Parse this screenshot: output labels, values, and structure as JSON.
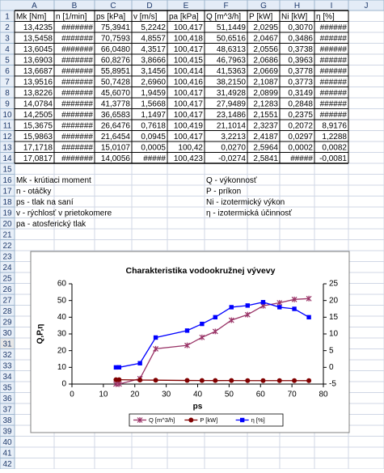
{
  "spreadsheet": {
    "columns": [
      "A",
      "B",
      "C",
      "D",
      "E",
      "F",
      "G",
      "H",
      "I",
      "J"
    ],
    "rows": [
      1,
      2,
      3,
      4,
      5,
      6,
      7,
      8,
      9,
      10,
      11,
      12,
      13,
      14,
      15,
      16,
      17,
      18,
      19,
      20,
      21,
      22,
      23,
      24,
      25,
      26,
      27,
      28,
      29,
      30,
      31,
      32,
      33,
      34,
      35,
      36,
      37,
      38,
      39,
      40,
      41,
      42
    ]
  },
  "table": {
    "header": [
      "Mk [Nm]",
      "n [1/min]",
      "ps [kPa]",
      "v [m/s]",
      "pa [kPa]",
      "Q [m^3/h]",
      "P [kW]",
      "Ni [kW]",
      "η [%]"
    ],
    "rows": [
      [
        "13,4235",
        "#######",
        "75,3941",
        "5,2242",
        "100,417",
        "51,1449",
        "2,0295",
        "0,3070",
        "######"
      ],
      [
        "13,5458",
        "#######",
        "70,7593",
        "4,8557",
        "100,418",
        "50,6516",
        "2,0467",
        "0,3486",
        "######"
      ],
      [
        "13,6045",
        "#######",
        "66,0480",
        "4,3517",
        "100,417",
        "48,6313",
        "2,0556",
        "0,3738",
        "######"
      ],
      [
        "13,6903",
        "#######",
        "60,8276",
        "3,8666",
        "100,415",
        "46,7963",
        "2,0686",
        "0,3963",
        "######"
      ],
      [
        "13,6687",
        "#######",
        "55,8951",
        "3,1456",
        "100,414",
        "41,5363",
        "2,0669",
        "0,3778",
        "######"
      ],
      [
        "13,9516",
        "#######",
        "50,7428",
        "2,6960",
        "100,416",
        "38,2150",
        "2,1087",
        "0,3773",
        "######"
      ],
      [
        "13,8226",
        "#######",
        "45,6070",
        "1,9459",
        "100,417",
        "31,4928",
        "2,0899",
        "0,3149",
        "######"
      ],
      [
        "14,0784",
        "#######",
        "41,3778",
        "1,5668",
        "100,417",
        "27,9489",
        "2,1283",
        "0,2848",
        "######"
      ],
      [
        "14,2505",
        "#######",
        "36,6583",
        "1,1497",
        "100,417",
        "23,1486",
        "2,1551",
        "0,2375",
        "######"
      ],
      [
        "15,3675",
        "#######",
        "26,6476",
        "0,7618",
        "100,419",
        "21,1014",
        "2,3237",
        "0,2072",
        "8,9176"
      ],
      [
        "15,9863",
        "#######",
        "21,6454",
        "0,0945",
        "100,417",
        "3,2213",
        "2,4187",
        "0,0297",
        "1,2288"
      ],
      [
        "17,1718",
        "#######",
        "15,0107",
        "0,0005",
        "100,42",
        "0,0270",
        "2,5964",
        "0,0002",
        "0,0082"
      ],
      [
        "17,0817",
        "#######",
        "14,0056",
        "#####",
        "100,423",
        "-0,0274",
        "2,5841",
        "#####",
        "-0,0081"
      ]
    ]
  },
  "notes": [
    [
      "Mk - krútiaci moment",
      "Q - výkonnosť"
    ],
    [
      "n - otáčky",
      "P - príkon"
    ],
    [
      "ps - tlak na saní",
      "Ni - izotermický výkon"
    ],
    [
      "v - rýchlosť v prietokomere",
      "η - izotermická účinnosť"
    ],
    [
      "pa - atosferický tlak"
    ]
  ],
  "chart_data": {
    "type": "line",
    "title": "Charakteristika vodookružnej vývevy",
    "x_label": "ps",
    "y_label": "Q,P,η",
    "x": [
      75.3941,
      70.7593,
      66.048,
      60.8276,
      55.8951,
      50.7428,
      45.607,
      41.3778,
      36.6583,
      26.6476,
      21.6454,
      15.0107,
      14.0056
    ],
    "xlim": [
      0,
      80
    ],
    "xticks": [
      0,
      10,
      20,
      30,
      40,
      50,
      60,
      70,
      80
    ],
    "ylim": [
      0,
      60
    ],
    "yticks": [
      0,
      10,
      20,
      30,
      40,
      50,
      60
    ],
    "y2lim": [
      -5,
      25
    ],
    "y2ticks": [
      -5,
      0,
      5,
      10,
      15,
      20,
      25
    ],
    "legend": "bottom",
    "series": [
      {
        "name": "Q [m^3/h]",
        "color": "#993366",
        "values": [
          51.1449,
          50.6516,
          48.6313,
          46.7963,
          41.5363,
          38.215,
          31.4928,
          27.9489,
          23.1486,
          21.1014,
          3.2213,
          0.027,
          -0.0274
        ]
      },
      {
        "name": "P [kW]",
        "color": "#800000",
        "values": [
          2.0295,
          2.0467,
          2.0556,
          2.0686,
          2.0669,
          2.1087,
          2.0899,
          2.1283,
          2.1551,
          2.3237,
          2.4187,
          2.5964,
          2.5841
        ]
      },
      {
        "name": "η [%]",
        "color": "#0000ff",
        "axis": "y2",
        "values": [
          15,
          17.5,
          18,
          19.5,
          18.5,
          18,
          15,
          13,
          11,
          8.9176,
          1.2288,
          0.0082,
          -0.0081
        ]
      }
    ]
  }
}
